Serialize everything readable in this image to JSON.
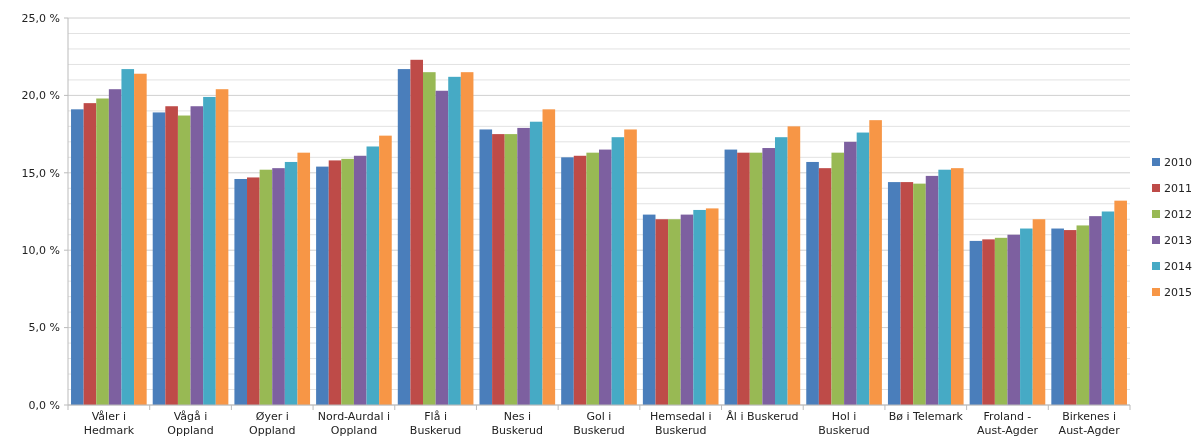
{
  "chart_data": {
    "type": "bar",
    "categories": [
      "Våler i Hedmark",
      "Vågå i Oppland",
      "Øyer i Oppland",
      "Nord-Aurdal i Oppland",
      "Flå i Buskerud",
      "Nes i Buskerud",
      "Gol i Buskerud",
      "Hemsedal i Buskerud",
      "Ål i Buskerud",
      "Hol i Buskerud",
      "Bø i Telemark",
      "Froland - Aust-Agder",
      "Birkenes i Aust-Agder"
    ],
    "series": [
      {
        "name": "2010",
        "color": "#4a7ebb",
        "values": [
          19.1,
          18.9,
          14.6,
          15.4,
          21.7,
          17.8,
          16.0,
          12.3,
          16.5,
          15.7,
          14.4,
          10.6,
          11.4
        ]
      },
      {
        "name": "2011",
        "color": "#be4b48",
        "values": [
          19.5,
          19.3,
          14.7,
          15.8,
          22.3,
          17.5,
          16.1,
          12.0,
          16.3,
          15.3,
          14.4,
          10.7,
          11.3
        ]
      },
      {
        "name": "2012",
        "color": "#98b954",
        "values": [
          19.8,
          18.7,
          15.2,
          15.9,
          21.5,
          17.5,
          16.3,
          12.0,
          16.3,
          16.3,
          14.3,
          10.8,
          11.6
        ]
      },
      {
        "name": "2013",
        "color": "#7d60a0",
        "values": [
          20.4,
          19.3,
          15.3,
          16.1,
          20.3,
          17.9,
          16.5,
          12.3,
          16.6,
          17.0,
          14.8,
          11.0,
          12.2
        ]
      },
      {
        "name": "2014",
        "color": "#46aac5",
        "values": [
          21.7,
          19.9,
          15.7,
          16.7,
          21.2,
          18.3,
          17.3,
          12.6,
          17.3,
          17.6,
          15.2,
          11.4,
          12.5
        ]
      },
      {
        "name": "2015",
        "color": "#f79646",
        "values": [
          21.4,
          20.4,
          16.3,
          17.4,
          21.5,
          19.1,
          17.8,
          12.7,
          18.0,
          18.4,
          15.3,
          12.0,
          13.2
        ]
      }
    ],
    "ylim": [
      0,
      25
    ],
    "yticks": [
      {
        "value": 0,
        "label": "0,0 %"
      },
      {
        "value": 1,
        "label": null
      },
      {
        "value": 2,
        "label": null
      },
      {
        "value": 3,
        "label": null
      },
      {
        "value": 4,
        "label": null
      },
      {
        "value": 5,
        "label": "5,0 %"
      },
      {
        "value": 6,
        "label": null
      },
      {
        "value": 7,
        "label": null
      },
      {
        "value": 8,
        "label": null
      },
      {
        "value": 9,
        "label": null
      },
      {
        "value": 10,
        "label": "10,0 %"
      },
      {
        "value": 11,
        "label": null
      },
      {
        "value": 12,
        "label": null
      },
      {
        "value": 13,
        "label": null
      },
      {
        "value": 14,
        "label": null
      },
      {
        "value": 15,
        "label": "15,0 %"
      },
      {
        "value": 16,
        "label": null
      },
      {
        "value": 17,
        "label": null
      },
      {
        "value": 18,
        "label": null
      },
      {
        "value": 19,
        "label": null
      },
      {
        "value": 20,
        "label": "20,0 %"
      },
      {
        "value": 21,
        "label": null
      },
      {
        "value": 22,
        "label": null
      },
      {
        "value": 23,
        "label": null
      },
      {
        "value": 24,
        "label": null
      },
      {
        "value": 25,
        "label": "25,0 %"
      }
    ],
    "grid": "y",
    "legend": "right"
  }
}
